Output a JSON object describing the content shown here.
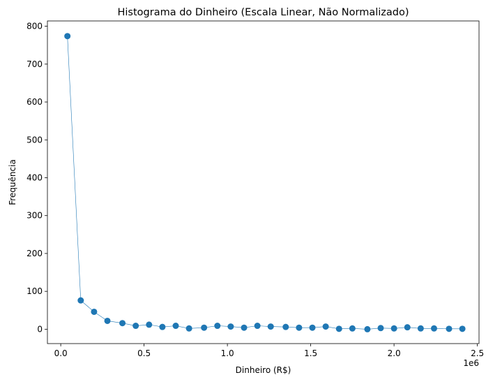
{
  "chart_data": {
    "type": "line",
    "title": "Histograma do Dinheiro (Escala Linear, Não Normalizado)",
    "xlabel": "Dinheiro (R$)",
    "ylabel": "Frequência",
    "x_offset_label": "1e6",
    "x_scale": 1000000,
    "xlim": [
      -0.08,
      2.51
    ],
    "ylim": [
      -38,
      814
    ],
    "x_ticks": [
      0.0,
      0.5,
      1.0,
      1.5,
      2.0,
      2.5
    ],
    "x_tick_labels": [
      "0.0",
      "0.5",
      "1.0",
      "1.5",
      "2.0",
      "2.5"
    ],
    "y_ticks": [
      0,
      100,
      200,
      300,
      400,
      500,
      600,
      700,
      800
    ],
    "y_tick_labels": [
      "0",
      "100",
      "200",
      "300",
      "400",
      "500",
      "600",
      "700",
      "800"
    ],
    "grid": false,
    "series": [
      {
        "color": "#1f77b4",
        "marker": "circle",
        "x": [
          0.04,
          0.12,
          0.2,
          0.28,
          0.37,
          0.45,
          0.53,
          0.61,
          0.69,
          0.77,
          0.86,
          0.94,
          1.02,
          1.1,
          1.18,
          1.26,
          1.35,
          1.43,
          1.51,
          1.59,
          1.67,
          1.75,
          1.84,
          1.92,
          2.0,
          2.08,
          2.16,
          2.24,
          2.33,
          2.41
        ],
        "values": [
          774,
          76,
          46,
          22,
          16,
          9,
          12,
          6,
          9,
          2,
          4,
          9,
          7,
          4,
          9,
          7,
          6,
          4,
          4,
          7,
          1,
          2,
          0,
          3,
          2,
          5,
          2,
          2,
          1,
          1
        ]
      }
    ]
  }
}
